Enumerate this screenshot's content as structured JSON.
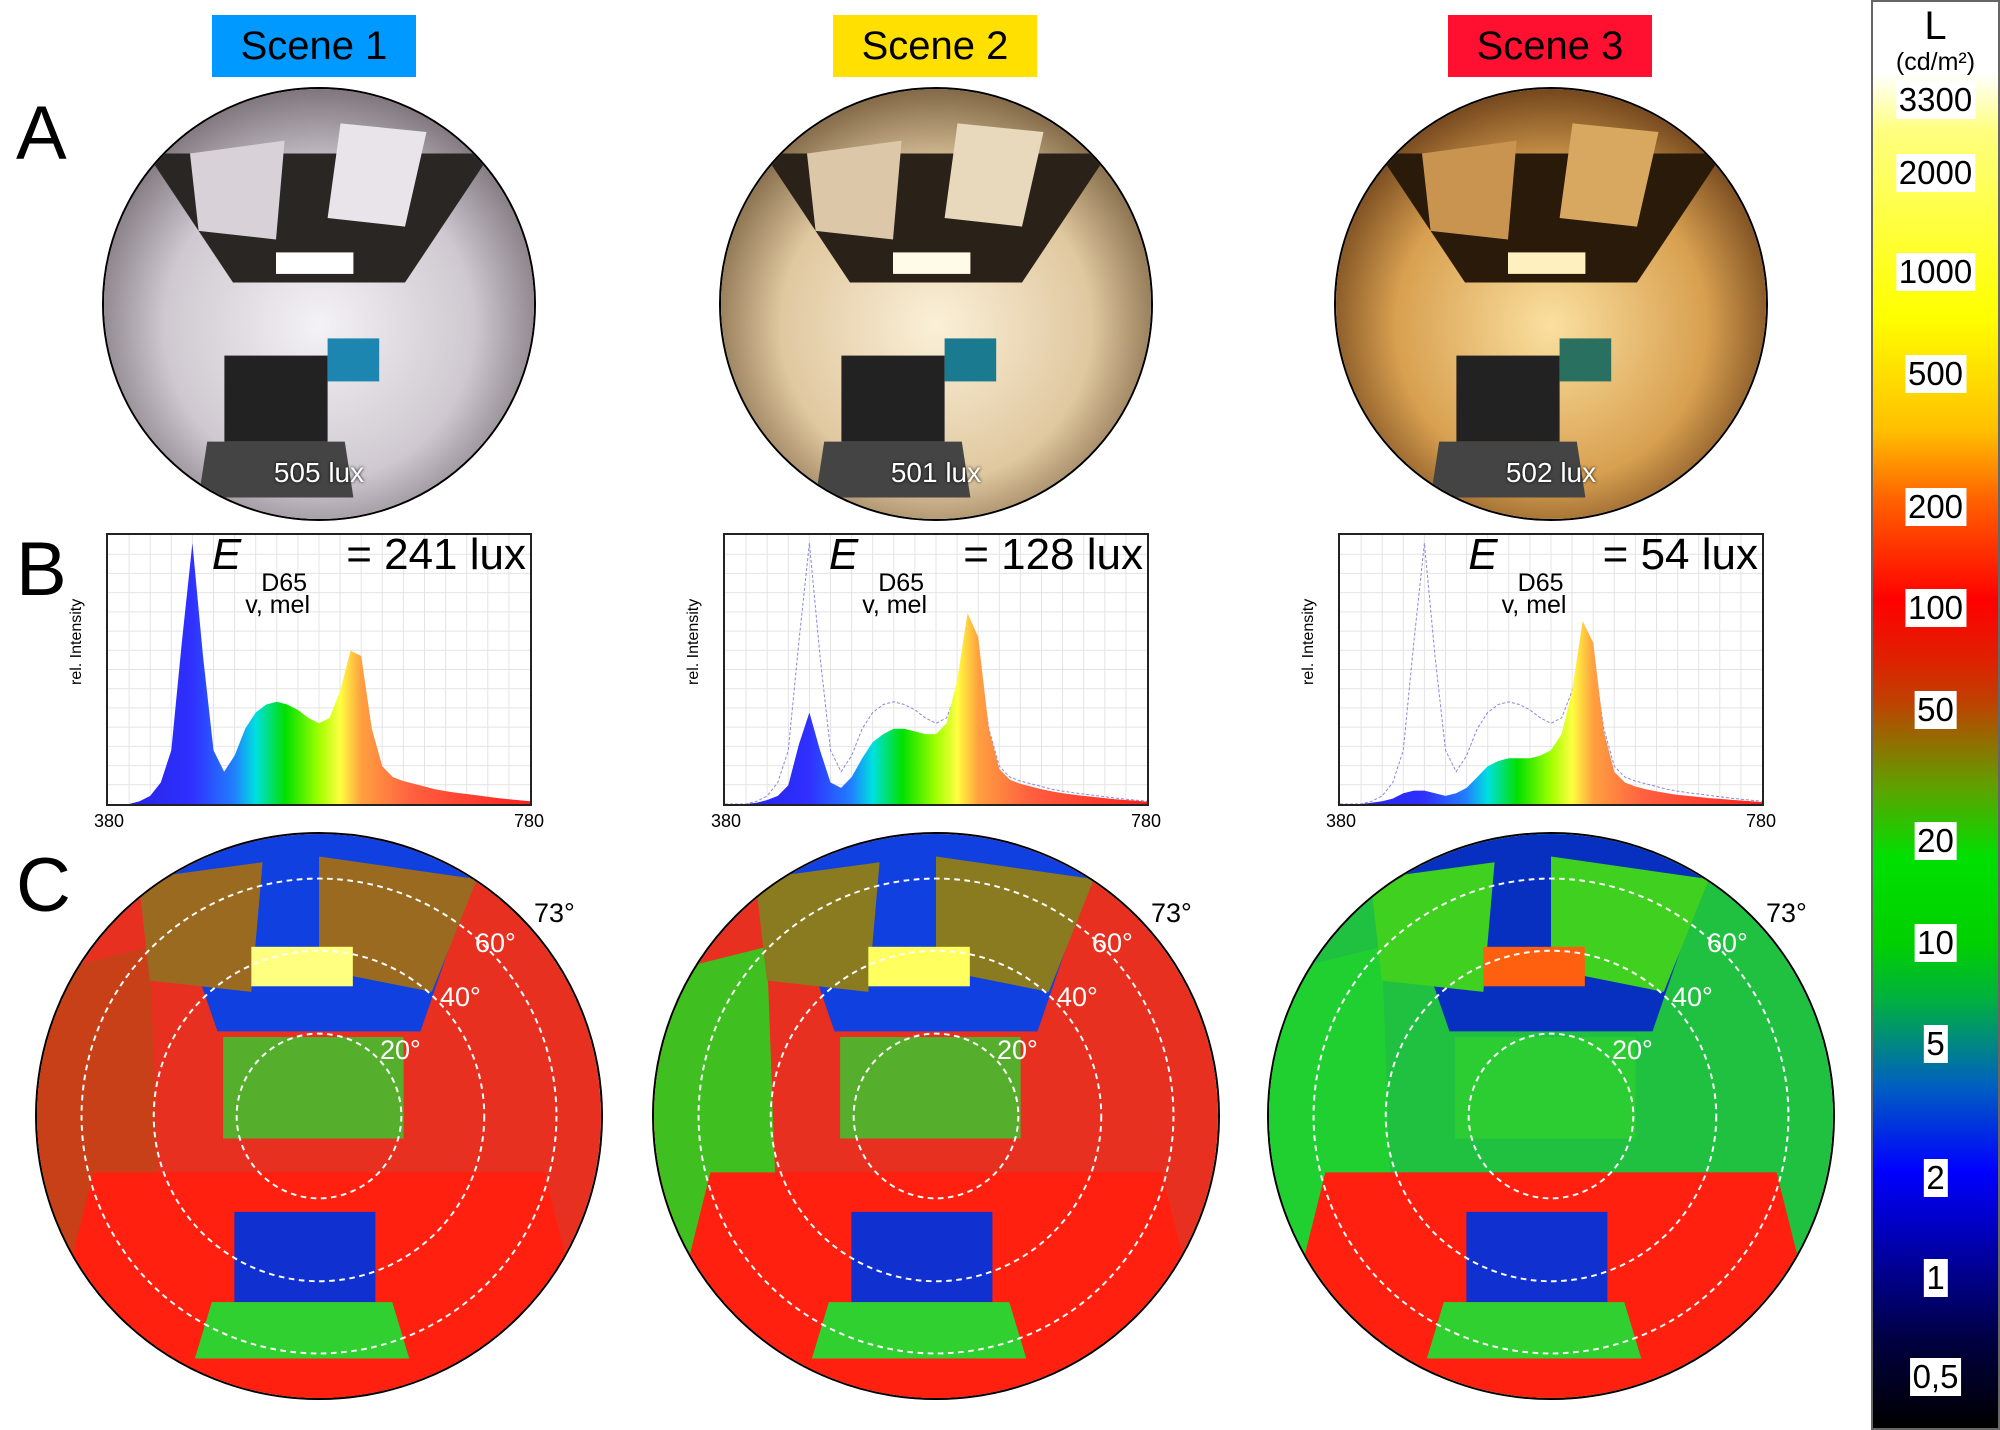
{
  "scenes": [
    {
      "label": "Scene 1",
      "color": "#0099ff",
      "illuminance": "505 lux",
      "melanopic": "= 241 lux"
    },
    {
      "label": "Scene 2",
      "color": "#ffe000",
      "illuminance": "501 lux",
      "melanopic": "= 128 lux"
    },
    {
      "label": "Scene 3",
      "color": "#ff1030",
      "illuminance": "502 lux",
      "melanopic": "= 54 lux"
    }
  ],
  "row_letters": [
    "A",
    "B",
    "C"
  ],
  "formula": {
    "symbol": "E",
    "superscript": "D65",
    "subscript": "v, mel"
  },
  "angles": [
    "20°",
    "40°",
    "60°",
    "73°"
  ],
  "colorbar": {
    "title": "L",
    "unit": "(cd/m²)",
    "ticks": [
      "3300",
      "2000",
      "1000",
      "500",
      "200",
      "100",
      "50",
      "20",
      "10",
      "5",
      "2",
      "1",
      "0,5"
    ]
  },
  "chart_data": [
    {
      "type": "area",
      "title": "",
      "xlabel": "",
      "ylabel": "rel. Intensity",
      "xlim": [
        380,
        780
      ],
      "x_tick_labels": [
        "380",
        "780"
      ],
      "grid": true,
      "x": [
        380,
        390,
        400,
        410,
        420,
        430,
        440,
        450,
        460,
        470,
        480,
        490,
        500,
        510,
        520,
        530,
        540,
        550,
        560,
        570,
        580,
        590,
        600,
        610,
        620,
        630,
        640,
        650,
        660,
        670,
        680,
        690,
        700,
        710,
        720,
        730,
        740,
        750,
        760,
        770,
        780
      ],
      "series": [
        {
          "values": [
            0,
            0,
            0,
            0.01,
            0.03,
            0.08,
            0.2,
            0.6,
            0.97,
            0.55,
            0.2,
            0.12,
            0.18,
            0.28,
            0.34,
            0.37,
            0.38,
            0.37,
            0.35,
            0.32,
            0.3,
            0.32,
            0.42,
            0.57,
            0.55,
            0.28,
            0.14,
            0.1,
            0.085,
            0.075,
            0.065,
            0.055,
            0.048,
            0.042,
            0.037,
            0.032,
            0.027,
            0.022,
            0.018,
            0.014,
            0.01
          ]
        }
      ]
    },
    {
      "type": "area",
      "title": "",
      "xlabel": "",
      "ylabel": "rel. Intensity",
      "xlim": [
        380,
        780
      ],
      "x_tick_labels": [
        "380",
        "780"
      ],
      "grid": true,
      "x": [
        380,
        390,
        400,
        410,
        420,
        430,
        440,
        450,
        460,
        470,
        480,
        490,
        500,
        510,
        520,
        530,
        540,
        550,
        560,
        570,
        580,
        590,
        600,
        610,
        620,
        630,
        640,
        650,
        660,
        670,
        680,
        690,
        700,
        710,
        720,
        730,
        740,
        750,
        760,
        770,
        780
      ],
      "series": [
        {
          "values": [
            0,
            0,
            0,
            0.005,
            0.015,
            0.03,
            0.07,
            0.22,
            0.34,
            0.2,
            0.08,
            0.06,
            0.1,
            0.17,
            0.23,
            0.26,
            0.28,
            0.28,
            0.27,
            0.26,
            0.26,
            0.3,
            0.46,
            0.71,
            0.62,
            0.28,
            0.13,
            0.09,
            0.075,
            0.065,
            0.055,
            0.047,
            0.04,
            0.035,
            0.03,
            0.026,
            0.022,
            0.018,
            0.015,
            0.012,
            0.008
          ]
        }
      ]
    },
    {
      "type": "area",
      "title": "",
      "xlabel": "",
      "ylabel": "rel. Intensity",
      "xlim": [
        380,
        780
      ],
      "x_tick_labels": [
        "380",
        "780"
      ],
      "grid": true,
      "x": [
        380,
        390,
        400,
        410,
        420,
        430,
        440,
        450,
        460,
        470,
        480,
        490,
        500,
        510,
        520,
        530,
        540,
        550,
        560,
        570,
        580,
        590,
        600,
        610,
        620,
        630,
        640,
        650,
        660,
        670,
        680,
        690,
        700,
        710,
        720,
        730,
        740,
        750,
        760,
        770,
        780
      ],
      "series": [
        {
          "values": [
            0,
            0,
            0,
            0.005,
            0.01,
            0.02,
            0.04,
            0.05,
            0.05,
            0.04,
            0.03,
            0.04,
            0.06,
            0.1,
            0.14,
            0.16,
            0.17,
            0.17,
            0.17,
            0.18,
            0.2,
            0.26,
            0.42,
            0.68,
            0.6,
            0.27,
            0.12,
            0.08,
            0.065,
            0.055,
            0.047,
            0.04,
            0.034,
            0.03,
            0.026,
            0.022,
            0.019,
            0.016,
            0.013,
            0.01,
            0.007
          ]
        }
      ]
    }
  ]
}
